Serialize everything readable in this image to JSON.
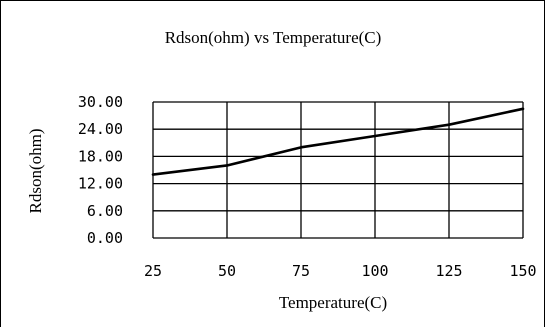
{
  "chart_data": {
    "type": "line",
    "title": "Rdson(ohm) vs Temperature(C)",
    "xlabel": "Temperature(C)",
    "ylabel": "Rdson(ohm)",
    "x_tick_labels": [
      "25",
      "50",
      "75",
      "100",
      "125",
      "150"
    ],
    "y_tick_labels": [
      "30.00",
      "24.00",
      "18.00",
      "12.00",
      "6.00",
      "0.00"
    ],
    "x": [
      25,
      50,
      75,
      100,
      125,
      150
    ],
    "series": [
      {
        "values": [
          14.0,
          16.0,
          20.0,
          22.5,
          25.0,
          28.5
        ]
      }
    ],
    "xlim": [
      25,
      150
    ],
    "ylim": [
      0,
      30
    ],
    "grid": true,
    "legend": "none"
  }
}
